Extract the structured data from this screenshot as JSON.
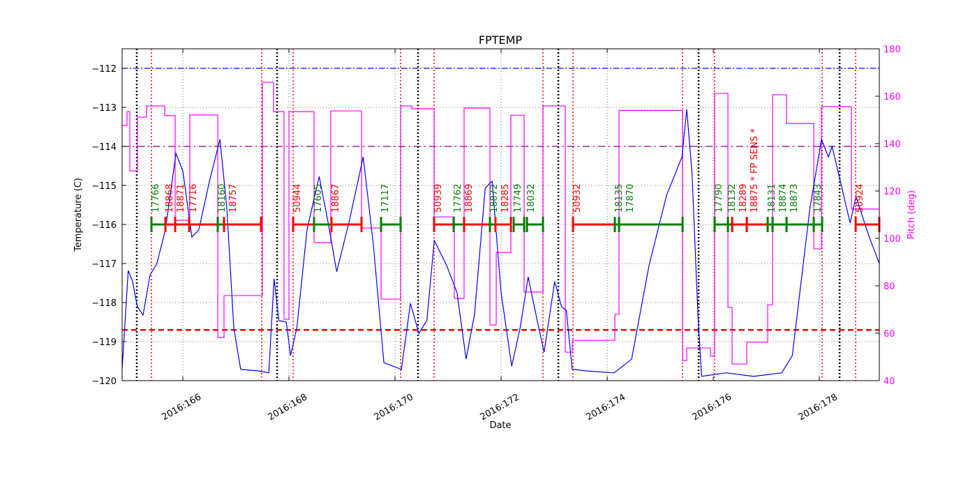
{
  "chart_data": {
    "type": "line",
    "title": "FPTEMP",
    "xlabel": "Date",
    "ylabel": "Temperature (C)",
    "y2label": "Pitch (deg)",
    "xlim": [
      164.855,
      179.13
    ],
    "ylim": [
      -120,
      -111.5
    ],
    "y2lim": [
      40,
      180
    ],
    "grid": true,
    "x_ticks": [
      {
        "value": 166,
        "label": "2016:166"
      },
      {
        "value": 168,
        "label": "2016:168"
      },
      {
        "value": 170,
        "label": "2016:170"
      },
      {
        "value": 172,
        "label": "2016:172"
      },
      {
        "value": 174,
        "label": "2016:174"
      },
      {
        "value": 176,
        "label": "2016:176"
      },
      {
        "value": 178,
        "label": "2016:178"
      }
    ],
    "y_ticks": [
      -120,
      -119,
      -118,
      -117,
      -116,
      -115,
      -114,
      -113,
      -112
    ],
    "y2_ticks": [
      40,
      60,
      80,
      100,
      120,
      140,
      160,
      180
    ],
    "colors": {
      "temperature": "#0000ff",
      "pitch": "#ff00ff",
      "y2axis": "#ff00ff",
      "limit_red": "#ff0000",
      "limit_blue": "#0000ff",
      "limit_purple": "#800080",
      "obs_red": "#ff0000",
      "obs_green": "#008000"
    },
    "horizontal_lines": [
      {
        "y": -112.0,
        "color": "#0000ff",
        "style": "dashdot"
      },
      {
        "y": -114.0,
        "color": "#800080",
        "style": "dashed"
      },
      {
        "y": -118.7,
        "color": "#ff0000",
        "style": "thickdashed"
      }
    ],
    "black_dotted_lines": [
      165.131,
      167.776,
      170.434,
      173.079,
      175.724,
      178.382
    ],
    "red_dotted_lines": [
      165.408,
      167.486,
      168.079,
      170.105,
      170.737,
      172.789,
      173.355,
      175.421,
      176.026,
      178.052,
      178.684
    ],
    "temperature": [
      [
        164.855,
        -119.71
      ],
      [
        164.97,
        -117.18
      ],
      [
        165.05,
        -117.45
      ],
      [
        165.14,
        -118.1
      ],
      [
        165.25,
        -118.32
      ],
      [
        165.38,
        -117.3
      ],
      [
        165.51,
        -117.0
      ],
      [
        165.67,
        -116.14
      ],
      [
        165.87,
        -114.18
      ],
      [
        166.0,
        -114.63
      ],
      [
        166.17,
        -116.32
      ],
      [
        166.3,
        -116.14
      ],
      [
        166.5,
        -114.9
      ],
      [
        166.7,
        -113.82
      ],
      [
        166.83,
        -115.6
      ],
      [
        166.96,
        -118.64
      ],
      [
        167.09,
        -119.71
      ],
      [
        167.42,
        -119.75
      ],
      [
        167.62,
        -119.8
      ],
      [
        167.72,
        -117.39
      ],
      [
        167.81,
        -118.46
      ],
      [
        167.95,
        -118.5
      ],
      [
        168.03,
        -119.36
      ],
      [
        168.15,
        -118.64
      ],
      [
        168.34,
        -116.14
      ],
      [
        168.57,
        -114.77
      ],
      [
        168.74,
        -115.96
      ],
      [
        168.9,
        -117.21
      ],
      [
        169.13,
        -115.96
      ],
      [
        169.4,
        -114.27
      ],
      [
        169.59,
        -116.5
      ],
      [
        169.79,
        -119.54
      ],
      [
        170.12,
        -119.71
      ],
      [
        170.29,
        -118.02
      ],
      [
        170.45,
        -118.79
      ],
      [
        170.6,
        -118.46
      ],
      [
        170.74,
        -116.41
      ],
      [
        170.97,
        -117.04
      ],
      [
        171.17,
        -117.75
      ],
      [
        171.34,
        -119.45
      ],
      [
        171.5,
        -118.29
      ],
      [
        171.7,
        -115.07
      ],
      [
        171.83,
        -114.89
      ],
      [
        172.0,
        -117.75
      ],
      [
        172.2,
        -119.63
      ],
      [
        172.36,
        -118.64
      ],
      [
        172.51,
        -117.34
      ],
      [
        172.68,
        -118.46
      ],
      [
        172.81,
        -119.27
      ],
      [
        173.01,
        -117.46
      ],
      [
        173.14,
        -118.11
      ],
      [
        173.23,
        -118.2
      ],
      [
        173.34,
        -119.71
      ],
      [
        173.6,
        -119.75
      ],
      [
        174.13,
        -119.8
      ],
      [
        174.46,
        -119.45
      ],
      [
        174.79,
        -117.04
      ],
      [
        175.12,
        -115.25
      ],
      [
        175.41,
        -114.27
      ],
      [
        175.5,
        -113.05
      ],
      [
        175.6,
        -114.71
      ],
      [
        175.71,
        -118.29
      ],
      [
        175.78,
        -119.89
      ],
      [
        176.24,
        -119.8
      ],
      [
        176.76,
        -119.89
      ],
      [
        177.29,
        -119.8
      ],
      [
        177.49,
        -119.36
      ],
      [
        177.82,
        -115.6
      ],
      [
        178.04,
        -113.82
      ],
      [
        178.17,
        -114.27
      ],
      [
        178.24,
        -114.0
      ],
      [
        178.35,
        -114.63
      ],
      [
        178.58,
        -115.96
      ],
      [
        178.69,
        -115.29
      ],
      [
        178.94,
        -116.32
      ],
      [
        179.13,
        -117.0
      ]
    ],
    "pitch_steps": [
      [
        164.855,
        147.6
      ],
      [
        164.947,
        153.5
      ],
      [
        165.0,
        128.5
      ],
      [
        165.144,
        151.2
      ],
      [
        165.316,
        155.9
      ],
      [
        165.658,
        151.8
      ],
      [
        165.855,
        107.6
      ],
      [
        166.131,
        152.1
      ],
      [
        166.658,
        58.2
      ],
      [
        166.776,
        75.9
      ],
      [
        167.5,
        165.9
      ],
      [
        167.71,
        153.5
      ],
      [
        167.908,
        65.9
      ],
      [
        168.0,
        153.5
      ],
      [
        168.473,
        98.2
      ],
      [
        168.789,
        153.8
      ],
      [
        169.368,
        104.4
      ],
      [
        169.737,
        74.4
      ],
      [
        170.105,
        155.9
      ],
      [
        170.316,
        154.7
      ],
      [
        170.737,
        109.1
      ],
      [
        171.118,
        74.7
      ],
      [
        171.302,
        155
      ],
      [
        171.789,
        63.5
      ],
      [
        171.908,
        94.1
      ],
      [
        172.184,
        152
      ],
      [
        172.434,
        77.4
      ],
      [
        172.789,
        155.9
      ],
      [
        173.21,
        52
      ],
      [
        173.342,
        57
      ],
      [
        174.144,
        68
      ],
      [
        174.223,
        154
      ],
      [
        175.421,
        48.5
      ],
      [
        175.5,
        53.8
      ],
      [
        175.947,
        50.3
      ],
      [
        176.026,
        161.2
      ],
      [
        176.276,
        70.9
      ],
      [
        176.355,
        47
      ],
      [
        176.631,
        56.2
      ],
      [
        177.026,
        72
      ],
      [
        177.118,
        160.6
      ],
      [
        177.381,
        148.5
      ],
      [
        177.894,
        95.6
      ],
      [
        178.039,
        155.6
      ],
      [
        178.605,
        112.4
      ],
      [
        179.13,
        112.4
      ]
    ],
    "observations_level": -116,
    "observations": [
      {
        "label": "17766",
        "start": 165.408,
        "end": 165.671,
        "color": "#008000"
      },
      {
        "label": "18868",
        "start": 165.671,
        "end": 165.855,
        "color": "#ff0000"
      },
      {
        "label": "18871",
        "start": 165.855,
        "end": 166.118,
        "color": "#ff0000"
      },
      {
        "label": "17716",
        "start": 166.118,
        "end": 166.658,
        "color": "#ff0000"
      },
      {
        "label": "18160",
        "start": 166.658,
        "end": 166.776,
        "color": "#008000"
      },
      {
        "label": "18757",
        "start": 166.776,
        "end": 167.473,
        "color": "#ff0000"
      },
      {
        "label": "50944",
        "start": 168.079,
        "end": 168.473,
        "color": "#ff0000"
      },
      {
        "label": "17605",
        "start": 168.473,
        "end": 168.802,
        "color": "#008000"
      },
      {
        "label": "18867",
        "start": 168.802,
        "end": 169.368,
        "color": "#ff0000"
      },
      {
        "label": "17117",
        "start": 169.737,
        "end": 170.105,
        "color": "#008000"
      },
      {
        "label": "50939",
        "start": 170.737,
        "end": 171.105,
        "color": "#ff0000"
      },
      {
        "label": "17762",
        "start": 171.105,
        "end": 171.302,
        "color": "#008000"
      },
      {
        "label": "18869",
        "start": 171.302,
        "end": 171.789,
        "color": "#ff0000"
      },
      {
        "label": "18872",
        "start": 171.789,
        "end": 171.894,
        "color": "#008000"
      },
      {
        "label": "18285",
        "start": 171.894,
        "end": 172.184,
        "color": "#ff0000"
      },
      {
        "label": "17749",
        "start": 172.237,
        "end": 172.434,
        "color": "#008000"
      },
      {
        "label": "18032",
        "start": 172.487,
        "end": 172.789,
        "color": "#008000"
      },
      {
        "label": "50932",
        "start": 173.355,
        "end": 174.144,
        "color": "#ff0000"
      },
      {
        "label": "18135",
        "start": 174.144,
        "end": 174.223,
        "color": "#008000"
      },
      {
        "label": "17870",
        "start": 174.223,
        "end": 175.421,
        "color": "#008000"
      },
      {
        "label": "17790",
        "start": 176.026,
        "end": 176.276,
        "color": "#008000"
      },
      {
        "label": "18132",
        "start": 176.276,
        "end": 176.355,
        "color": "#008000"
      },
      {
        "label": "18289",
        "start": 176.355,
        "end": 176.631,
        "color": "#ff0000"
      },
      {
        "label": "18875 * FP SENS *",
        "start": 176.631,
        "end": 177.026,
        "color": "#ff0000"
      },
      {
        "label": "18131",
        "start": 177.026,
        "end": 177.118,
        "color": "#008000"
      },
      {
        "label": "18874",
        "start": 177.118,
        "end": 177.381,
        "color": "#008000"
      },
      {
        "label": "18873",
        "start": 177.381,
        "end": 177.894,
        "color": "#008000"
      },
      {
        "label": "17843",
        "start": 177.894,
        "end": 178.052,
        "color": "#008000"
      },
      {
        "label": "50924",
        "start": 178.684,
        "end": 179.13,
        "color": "#ff0000"
      }
    ]
  }
}
